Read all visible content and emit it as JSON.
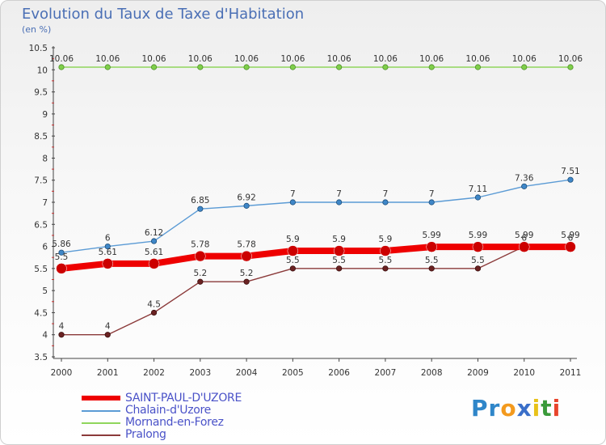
{
  "header": {
    "title": "Evolution du Taux de Taxe d'Habitation",
    "subtitle": "(en %)"
  },
  "chart_data": {
    "type": "line",
    "title": "Evolution du Taux de Taxe d'Habitation",
    "ylabel": "(en %)",
    "xlabel": "",
    "x": [
      "2000",
      "2001",
      "2002",
      "2003",
      "2004",
      "2005",
      "2006",
      "2007",
      "2008",
      "2009",
      "2010",
      "2011"
    ],
    "ylim": [
      3.5,
      10.5
    ],
    "yticks": [
      "3.5",
      "4",
      "4.5",
      "5",
      "5.5",
      "6",
      "6.5",
      "7",
      "7.5",
      "8",
      "8.5",
      "9",
      "9.5",
      "10",
      "10.5"
    ],
    "grid": false,
    "legend_position": "bottom-left",
    "series": [
      {
        "name": "SAINT-PAUL-D'UZORE",
        "color": "#ee0000",
        "values": [
          5.5,
          5.61,
          5.61,
          5.78,
          5.78,
          5.9,
          5.9,
          5.9,
          5.99,
          5.99,
          5.99,
          5.99
        ],
        "labels": [
          "5.5",
          "5.61",
          "5.61",
          "5.78",
          "5.78",
          "5.9",
          "5.9",
          "5.9",
          "5.99",
          "5.99",
          "5.99",
          "5.99"
        ]
      },
      {
        "name": "Chalain-d'Uzore",
        "color": "#5b9bd5",
        "values": [
          5.86,
          6,
          6.12,
          6.85,
          6.92,
          7,
          7,
          7,
          7,
          7.11,
          7.36,
          7.51
        ],
        "labels": [
          "5.86",
          "6",
          "6.12",
          "6.85",
          "6.92",
          "7",
          "7",
          "7",
          "7",
          "7.11",
          "7.36",
          "7.51"
        ]
      },
      {
        "name": "Mornand-en-Forez",
        "color": "#8fd65c",
        "values": [
          10.06,
          10.06,
          10.06,
          10.06,
          10.06,
          10.06,
          10.06,
          10.06,
          10.06,
          10.06,
          10.06,
          10.06
        ],
        "labels": [
          "10.06",
          "10.06",
          "10.06",
          "10.06",
          "10.06",
          "10.06",
          "10.06",
          "10.06",
          "10.06",
          "10.06",
          "10.06",
          "10.06"
        ]
      },
      {
        "name": "Pralong",
        "color": "#8b3a3a",
        "values": [
          4,
          4,
          4.5,
          5.2,
          5.2,
          5.5,
          5.5,
          5.5,
          5.5,
          5.5,
          6,
          6
        ],
        "labels": [
          "4",
          "4",
          "4.5",
          "5.2",
          "5.2",
          "5.5",
          "5.5",
          "5.5",
          "5.5",
          "5.5",
          "6",
          "6"
        ]
      }
    ]
  },
  "logo": {
    "letters": [
      "P",
      "r",
      "o",
      "x",
      "i",
      "t",
      "i"
    ],
    "colors": [
      "#2f86c9",
      "#2f86c9",
      "#f39a1e",
      "#3a6fc9",
      "#e8c21a",
      "#3a9a3a",
      "#e8452c"
    ]
  }
}
